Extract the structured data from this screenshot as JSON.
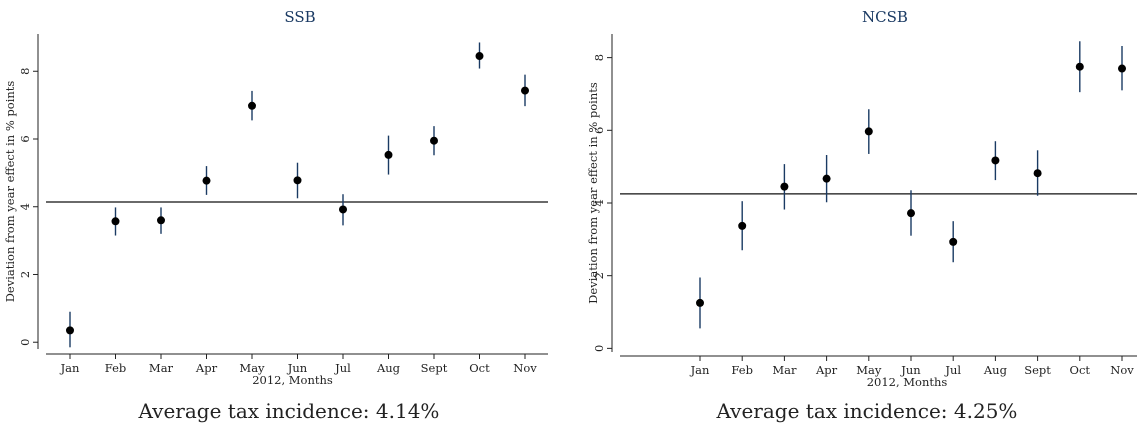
{
  "chart_data": [
    {
      "type": "scatter",
      "title": "SSB",
      "xlabel": "2012, Months",
      "ylabel": "Deviation from year effect in % points",
      "categories": [
        "Jan",
        "Feb",
        "Mar",
        "Apr",
        "May",
        "Jun",
        "Jul",
        "Aug",
        "Sept",
        "Oct",
        "Nov"
      ],
      "values": [
        0.35,
        3.57,
        3.6,
        4.77,
        6.98,
        4.78,
        3.92,
        5.53,
        5.95,
        8.45,
        7.43
      ],
      "ci_low": [
        -0.15,
        3.15,
        3.2,
        4.35,
        6.55,
        4.25,
        3.45,
        4.95,
        5.52,
        8.08,
        6.97
      ],
      "ci_high": [
        0.9,
        3.98,
        3.98,
        5.2,
        7.42,
        5.3,
        4.37,
        6.1,
        6.38,
        8.85,
        7.9
      ],
      "reference_line": 4.14,
      "ylim": [
        -0.2,
        9.1
      ],
      "yticks": [
        0,
        2,
        4,
        6,
        8
      ],
      "grid": false,
      "point_color": "#000000",
      "errorbar_color": "#1a3a63",
      "caption": "Average tax incidence: 4.14%"
    },
    {
      "type": "scatter",
      "title": "NCSB",
      "xlabel": "2012, Months",
      "ylabel": "Deviation from year effect in % points",
      "categories": [
        "Jan",
        "Feb",
        "Mar",
        "Apr",
        "May",
        "Jun",
        "Jul",
        "Aug",
        "Sept",
        "Oct",
        "Nov"
      ],
      "values": [
        1.25,
        3.37,
        4.45,
        4.67,
        5.97,
        3.72,
        2.93,
        5.17,
        4.82,
        7.75,
        7.7
      ],
      "ci_low": [
        0.55,
        2.7,
        3.82,
        4.02,
        5.35,
        3.1,
        2.37,
        4.63,
        4.2,
        7.05,
        7.1
      ],
      "ci_high": [
        1.95,
        4.05,
        5.07,
        5.32,
        6.58,
        4.35,
        3.5,
        5.7,
        5.45,
        8.45,
        8.32
      ],
      "reference_line": 4.25,
      "ylim": [
        -0.1,
        8.65
      ],
      "yticks": [
        0,
        2,
        4,
        6,
        8
      ],
      "grid": false,
      "point_color": "#000000",
      "errorbar_color": "#1a3a63",
      "caption": "Average tax incidence: 4.25%"
    }
  ]
}
